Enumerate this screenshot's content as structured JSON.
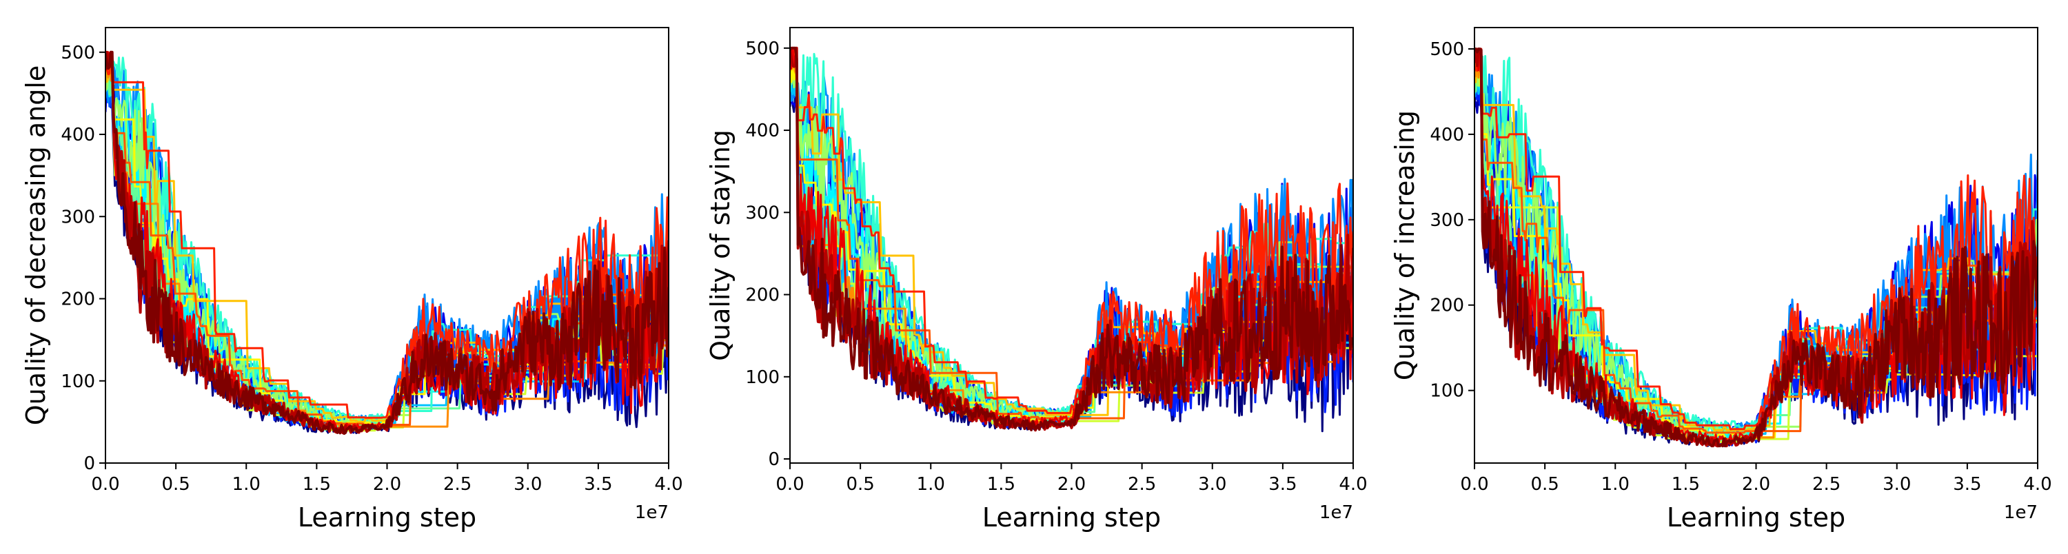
{
  "figure": {
    "background": "#ffffff",
    "axes_color": "#000000",
    "colormap": "jet",
    "colormap_stops": [
      "#00007f",
      "#0000ff",
      "#007fff",
      "#00ffff",
      "#7fff7f",
      "#ffff00",
      "#ff7f00",
      "#ff0000",
      "#7f0000"
    ]
  },
  "chart_data": [
    {
      "type": "line",
      "xlabel": "Learning step",
      "ylabel": "Quality of decreasing angle",
      "x_offset_label": "1e7",
      "xlim": [
        0,
        4.0
      ],
      "ylim": [
        0,
        530
      ],
      "xticks": [
        0.0,
        0.5,
        1.0,
        1.5,
        2.0,
        2.5,
        3.0,
        3.5,
        4.0
      ],
      "xtick_labels": [
        "0.0",
        "0.5",
        "1.0",
        "1.5",
        "2.0",
        "2.5",
        "3.0",
        "3.5",
        "4.0"
      ],
      "yticks": [
        0,
        100,
        200,
        300,
        400,
        500
      ],
      "ytick_labels": [
        "0",
        "100",
        "200",
        "300",
        "400",
        "500"
      ],
      "grid": false,
      "legend": "none",
      "series_count": 20,
      "series_summary_x": [
        0.0,
        0.25,
        0.5,
        0.75,
        1.0,
        1.25,
        1.5,
        1.75,
        2.0,
        2.25,
        2.5,
        2.75,
        3.0,
        3.25,
        3.5,
        3.75,
        4.0
      ],
      "envelope_low": [
        380,
        160,
        110,
        80,
        55,
        45,
        35,
        35,
        40,
        90,
        80,
        60,
        90,
        80,
        100,
        60,
        100
      ],
      "envelope_high": [
        500,
        500,
        330,
        210,
        140,
        100,
        75,
        60,
        60,
        200,
        170,
        150,
        200,
        240,
        290,
        240,
        330
      ],
      "mean_dark_red": [
        440,
        230,
        150,
        110,
        80,
        65,
        45,
        40,
        45,
        130,
        110,
        90,
        150,
        140,
        180,
        150,
        200
      ]
    },
    {
      "type": "line",
      "xlabel": "Learning step",
      "ylabel": "Quality of staying",
      "x_offset_label": "1e7",
      "xlim": [
        0,
        4.0
      ],
      "ylim": [
        -5,
        525
      ],
      "xticks": [
        0.0,
        0.5,
        1.0,
        1.5,
        2.0,
        2.5,
        3.0,
        3.5,
        4.0
      ],
      "xtick_labels": [
        "0.0",
        "0.5",
        "1.0",
        "1.5",
        "2.0",
        "2.5",
        "3.0",
        "3.5",
        "4.0"
      ],
      "yticks": [
        0,
        100,
        200,
        300,
        400,
        500
      ],
      "ytick_labels": [
        "0",
        "100",
        "200",
        "300",
        "400",
        "500"
      ],
      "grid": false,
      "legend": "none",
      "series_count": 20,
      "series_summary_x": [
        0.0,
        0.25,
        0.5,
        0.75,
        1.0,
        1.25,
        1.5,
        1.75,
        2.0,
        2.25,
        2.5,
        2.75,
        3.0,
        3.25,
        3.5,
        3.75,
        4.0
      ],
      "envelope_low": [
        230,
        150,
        100,
        70,
        50,
        40,
        35,
        35,
        40,
        90,
        80,
        60,
        90,
        80,
        100,
        60,
        100
      ],
      "envelope_high": [
        500,
        500,
        380,
        240,
        160,
        110,
        80,
        65,
        65,
        210,
        180,
        170,
        260,
        300,
        330,
        280,
        340
      ],
      "mean_dark_red": [
        300,
        200,
        150,
        110,
        80,
        60,
        45,
        40,
        45,
        130,
        110,
        95,
        160,
        150,
        180,
        160,
        210
      ]
    },
    {
      "type": "line",
      "xlabel": "Learning step",
      "ylabel": "Quality of increasing",
      "x_offset_label": "1e7",
      "xlim": [
        0,
        4.0
      ],
      "ylim": [
        15,
        525
      ],
      "xticks": [
        0.0,
        0.5,
        1.0,
        1.5,
        2.0,
        2.5,
        3.0,
        3.5,
        4.0
      ],
      "xtick_labels": [
        "0.0",
        "0.5",
        "1.0",
        "1.5",
        "2.0",
        "2.5",
        "3.0",
        "3.5",
        "4.0"
      ],
      "yticks": [
        100,
        200,
        300,
        400,
        500
      ],
      "ytick_labels": [
        "100",
        "200",
        "300",
        "400",
        "500"
      ],
      "grid": false,
      "legend": "none",
      "series_count": 20,
      "series_summary_x": [
        0.0,
        0.25,
        0.5,
        0.75,
        1.0,
        1.25,
        1.5,
        1.75,
        2.0,
        2.25,
        2.5,
        2.75,
        3.0,
        3.25,
        3.5,
        3.75,
        4.0
      ],
      "envelope_low": [
        290,
        140,
        100,
        70,
        50,
        40,
        35,
        30,
        40,
        100,
        90,
        70,
        100,
        90,
        100,
        70,
        110
      ],
      "envelope_high": [
        500,
        500,
        380,
        240,
        160,
        110,
        75,
        65,
        65,
        200,
        170,
        180,
        250,
        300,
        340,
        290,
        370
      ],
      "mean_dark_red": [
        330,
        210,
        150,
        110,
        80,
        60,
        45,
        38,
        45,
        140,
        120,
        100,
        170,
        160,
        190,
        170,
        220
      ]
    }
  ]
}
